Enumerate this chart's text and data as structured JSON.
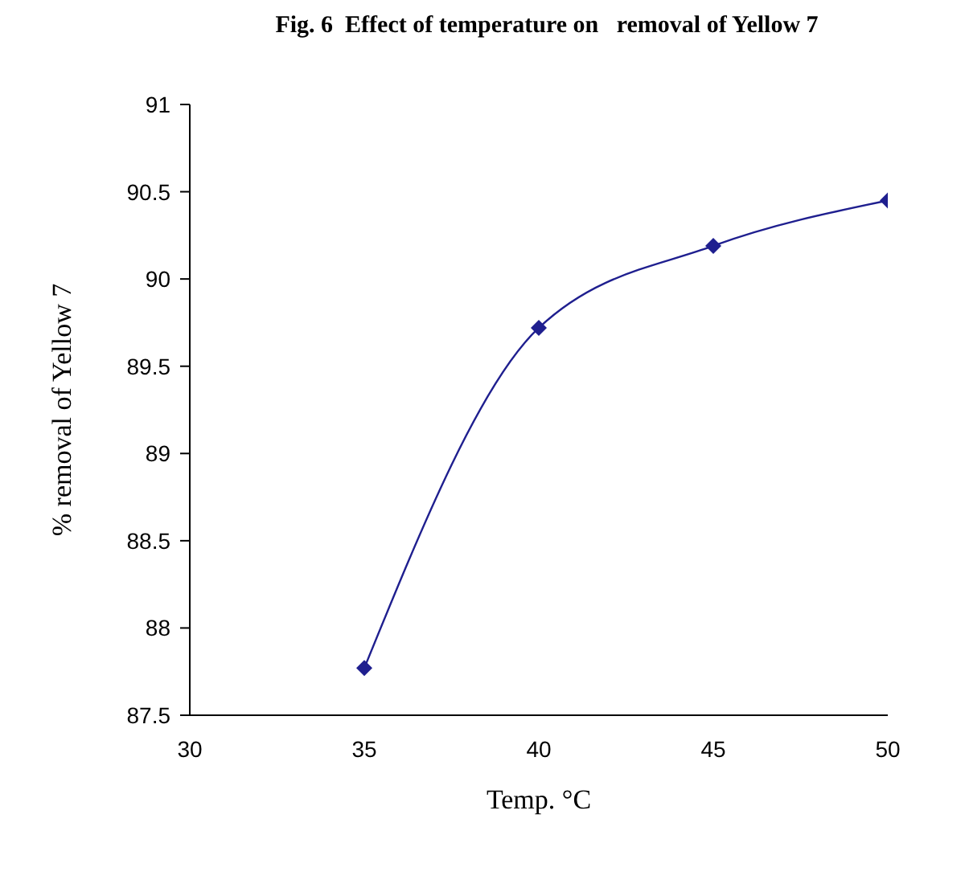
{
  "chart_data": {
    "type": "line",
    "title": "Fig. 6  Effect of temperature on   removal of Yellow 7",
    "xlabel": "Temp. °C",
    "ylabel": "% removal of Yellow 7",
    "x": [
      35,
      40,
      45,
      50
    ],
    "series": [
      {
        "color": "#1f1f8f",
        "values": [
          87.77,
          89.72,
          90.19,
          90.45
        ]
      }
    ],
    "xlim": [
      30,
      50
    ],
    "xticks": [
      30,
      35,
      40,
      45,
      50
    ],
    "ylim": [
      87.5,
      91
    ],
    "yticks": [
      87.5,
      88,
      88.5,
      89,
      89.5,
      90,
      90.5,
      91
    ],
    "marker": "diamond",
    "line_style": "solid"
  }
}
